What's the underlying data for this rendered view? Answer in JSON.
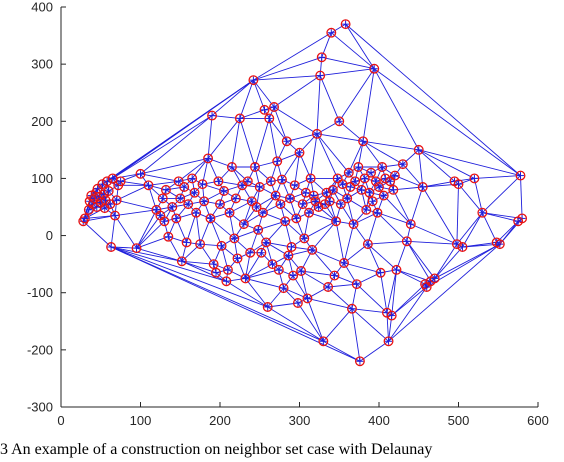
{
  "caption": "3 An example of a construction on neighbor set case with Delaunay",
  "chart_data": {
    "type": "scatter",
    "title": "",
    "xlabel": "",
    "ylabel": "",
    "xlim": [
      0,
      600
    ],
    "ylim": [
      -300,
      400
    ],
    "xticks": [
      0,
      100,
      200,
      300,
      400,
      500,
      600
    ],
    "yticks": [
      -300,
      -200,
      -100,
      0,
      100,
      200,
      300,
      400
    ],
    "grid": false,
    "legend": "none",
    "colors": {
      "edges": "#1f1fdb",
      "markers": "#e81212",
      "axis": "#262626"
    },
    "marker": "circle-with-plus",
    "series": [
      {
        "points": [
          [
            28,
            25
          ],
          [
            30,
            30
          ],
          [
            35,
            45
          ],
          [
            36,
            60
          ],
          [
            38,
            70
          ],
          [
            40,
            55
          ],
          [
            42,
            65
          ],
          [
            44,
            75
          ],
          [
            45,
            50
          ],
          [
            46,
            82
          ],
          [
            48,
            68
          ],
          [
            50,
            58
          ],
          [
            52,
            90
          ],
          [
            54,
            72
          ],
          [
            55,
            48
          ],
          [
            56,
            62
          ],
          [
            58,
            95
          ],
          [
            60,
            78
          ],
          [
            62,
            55
          ],
          [
            63,
            -20
          ],
          [
            65,
            100
          ],
          [
            68,
            35
          ],
          [
            70,
            62
          ],
          [
            72,
            88
          ],
          [
            75,
            95
          ],
          [
            95,
            -22
          ],
          [
            100,
            108
          ],
          [
            110,
            88
          ],
          [
            120,
            45
          ],
          [
            125,
            35
          ],
          [
            128,
            65
          ],
          [
            130,
            25
          ],
          [
            132,
            80
          ],
          [
            135,
            -2
          ],
          [
            140,
            50
          ],
          [
            145,
            30
          ],
          [
            148,
            95
          ],
          [
            150,
            65
          ],
          [
            152,
            -45
          ],
          [
            155,
            85
          ],
          [
            158,
            -12
          ],
          [
            160,
            55
          ],
          [
            165,
            100
          ],
          [
            168,
            75
          ],
          [
            170,
            40
          ],
          [
            175,
            -15
          ],
          [
            178,
            90
          ],
          [
            180,
            60
          ],
          [
            185,
            135
          ],
          [
            188,
            30
          ],
          [
            190,
            210
          ],
          [
            192,
            -50
          ],
          [
            195,
            -65
          ],
          [
            198,
            95
          ],
          [
            200,
            55
          ],
          [
            202,
            -18
          ],
          [
            205,
            78
          ],
          [
            208,
            -80
          ],
          [
            210,
            -60
          ],
          [
            212,
            40
          ],
          [
            215,
            120
          ],
          [
            218,
            -5
          ],
          [
            220,
            65
          ],
          [
            222,
            -40
          ],
          [
            225,
            205
          ],
          [
            228,
            88
          ],
          [
            230,
            20
          ],
          [
            232,
            -75
          ],
          [
            235,
            95
          ],
          [
            238,
            -30
          ],
          [
            240,
            60
          ],
          [
            242,
            272
          ],
          [
            244,
            120
          ],
          [
            246,
            50
          ],
          [
            248,
            10
          ],
          [
            250,
            85
          ],
          [
            252,
            -30
          ],
          [
            254,
            40
          ],
          [
            256,
            220
          ],
          [
            258,
            -12
          ],
          [
            260,
            -125
          ],
          [
            262,
            205
          ],
          [
            264,
            95
          ],
          [
            266,
            -50
          ],
          [
            268,
            225
          ],
          [
            270,
            70
          ],
          [
            272,
            130
          ],
          [
            274,
            -60
          ],
          [
            276,
            55
          ],
          [
            278,
            98
          ],
          [
            280,
            -92
          ],
          [
            282,
            25
          ],
          [
            284,
            165
          ],
          [
            286,
            -35
          ],
          [
            288,
            65
          ],
          [
            290,
            -20
          ],
          [
            292,
            -70
          ],
          [
            294,
            88
          ],
          [
            296,
            30
          ],
          [
            298,
            -118
          ],
          [
            300,
            145
          ],
          [
            302,
            -62
          ],
          [
            304,
            55
          ],
          [
            306,
            -5
          ],
          [
            308,
            75
          ],
          [
            310,
            -110
          ],
          [
            312,
            40
          ],
          [
            314,
            100
          ],
          [
            316,
            -25
          ],
          [
            318,
            70
          ],
          [
            320,
            60
          ],
          [
            322,
            178
          ],
          [
            324,
            50
          ],
          [
            326,
            280
          ],
          [
            328,
            312
          ],
          [
            330,
            -185
          ],
          [
            332,
            55
          ],
          [
            334,
            75
          ],
          [
            336,
            -90
          ],
          [
            338,
            60
          ],
          [
            340,
            355
          ],
          [
            342,
            80
          ],
          [
            344,
            -70
          ],
          [
            346,
            25
          ],
          [
            348,
            100
          ],
          [
            350,
            200
          ],
          [
            352,
            55
          ],
          [
            354,
            90
          ],
          [
            356,
            -48
          ],
          [
            358,
            370
          ],
          [
            360,
            65
          ],
          [
            362,
            110
          ],
          [
            364,
            85
          ],
          [
            366,
            -128
          ],
          [
            368,
            20
          ],
          [
            370,
            95
          ],
          [
            372,
            -85
          ],
          [
            374,
            120
          ],
          [
            376,
            -220
          ],
          [
            378,
            80
          ],
          [
            380,
            165
          ],
          [
            382,
            100
          ],
          [
            384,
            45
          ],
          [
            386,
            -15
          ],
          [
            388,
            75
          ],
          [
            390,
            110
          ],
          [
            392,
            60
          ],
          [
            394,
            292
          ],
          [
            396,
            95
          ],
          [
            398,
            40
          ],
          [
            400,
            85
          ],
          [
            402,
            -65
          ],
          [
            404,
            120
          ],
          [
            406,
            70
          ],
          [
            408,
            100
          ],
          [
            410,
            -135
          ],
          [
            412,
            -185
          ],
          [
            414,
            95
          ],
          [
            416,
            -140
          ],
          [
            418,
            80
          ],
          [
            420,
            105
          ],
          [
            422,
            -60
          ],
          [
            430,
            125
          ],
          [
            435,
            -10
          ],
          [
            440,
            20
          ],
          [
            450,
            150
          ],
          [
            455,
            85
          ],
          [
            458,
            -85
          ],
          [
            460,
            -90
          ],
          [
            465,
            -80
          ],
          [
            470,
            -75
          ],
          [
            495,
            95
          ],
          [
            498,
            -15
          ],
          [
            500,
            90
          ],
          [
            505,
            -20
          ],
          [
            520,
            100
          ],
          [
            530,
            40
          ],
          [
            548,
            -12
          ],
          [
            552,
            -15
          ],
          [
            578,
            105
          ],
          [
            580,
            30
          ],
          [
            575,
            25
          ]
        ]
      }
    ]
  }
}
